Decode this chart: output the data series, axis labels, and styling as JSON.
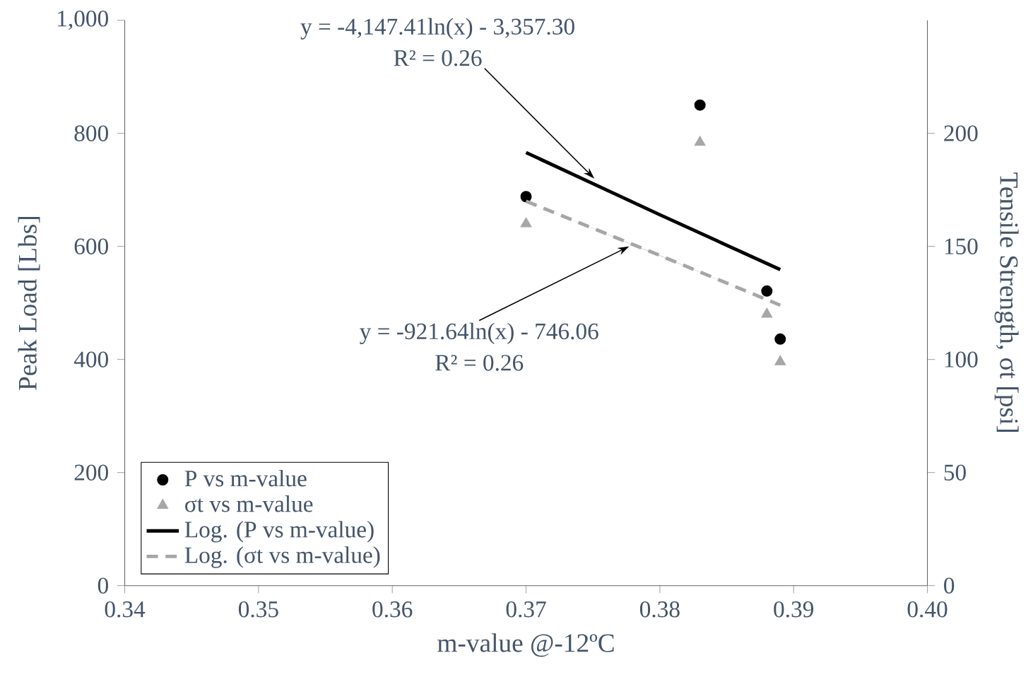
{
  "chart_data": {
    "type": "scatter",
    "xlabel": "m-value @-12ºC",
    "ylabel": "Peak Load [Lbs]",
    "y2label": "Tensile Strength, σt [psi]",
    "xlim": [
      0.34,
      0.4
    ],
    "xticks": [
      0.34,
      0.35,
      0.36,
      0.37,
      0.38,
      0.39,
      {
        "value": 0.4,
        "label": "0.40"
      }
    ],
    "ylim": [
      0,
      1000
    ],
    "yticks": [
      0,
      200,
      400,
      600,
      800,
      {
        "value": 1000,
        "label": "1,000"
      }
    ],
    "y2lim": [
      0,
      250
    ],
    "y2ticks": [
      0,
      50,
      100,
      150,
      200
    ],
    "grid": false,
    "legend": "bottom left",
    "series": [
      {
        "name": "P vs m-value",
        "type": "scatter",
        "marker": "circle",
        "color": "#000000",
        "x": [
          0.37,
          0.383,
          0.388,
          0.389
        ],
        "values": [
          688,
          850,
          521,
          436
        ]
      },
      {
        "name": "σt vs m-value",
        "type": "scatter",
        "marker": "triangle",
        "color": "#a6a6a6",
        "axis": "y2",
        "x": [
          0.37,
          0.383,
          0.388,
          0.389
        ],
        "values": [
          160,
          196,
          120,
          99
        ]
      },
      {
        "name": "Log. (P vs m-value)",
        "type": "line",
        "marker": "none",
        "line_style": "solid",
        "color": "#000000",
        "x": [
          0.37,
          0.38,
          0.389
        ],
        "values": [
          766,
          656,
          559
        ]
      },
      {
        "name": "Log. (σt vs m-value)",
        "type": "line",
        "marker": "none",
        "line_style": "dashed",
        "color": "#a6a6a6",
        "axis": "y2",
        "x": [
          0.37,
          0.38,
          0.389
        ],
        "values": [
          170,
          146,
          124
        ]
      }
    ],
    "annotations": [
      "y = -4,147.41ln(x) - 3,357.30",
      {
        "text": "R² = 0.26",
        "x": 0.3751,
        "y": 720
      },
      {
        "text": "y = -921.64ln(x) - 746.06",
        "x": 0.3777,
        "y": 600
      },
      "R² = 0.26"
    ]
  }
}
